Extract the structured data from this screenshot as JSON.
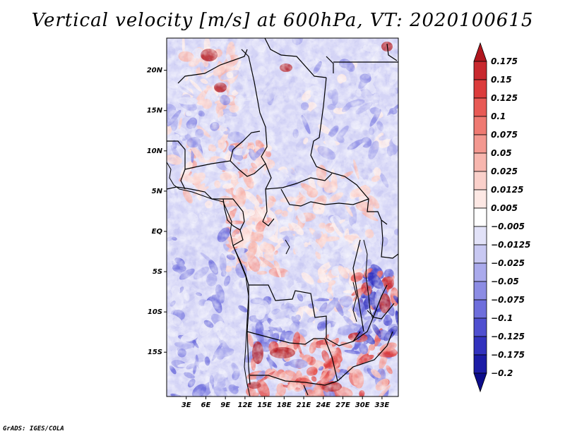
{
  "title": "Vertical velocity [m/s] at 600hPa, VT: 2020100615",
  "credit": "GrADS: IGES/COLA",
  "map": {
    "lon_range": [
      0,
      35.5
    ],
    "lat_range": [
      -20.5,
      24
    ],
    "lon_ticks": [
      "3E",
      "6E",
      "9E",
      "12E",
      "15E",
      "18E",
      "21E",
      "24E",
      "27E",
      "30E",
      "33E"
    ],
    "lat_ticks": [
      "20N",
      "15N",
      "10N",
      "5N",
      "EQ",
      "5S",
      "10S",
      "15S"
    ]
  },
  "colorbar": {
    "labels": [
      "0.175",
      "0.15",
      "0.125",
      "0.1",
      "0.075",
      "0.05",
      "0.025",
      "0.0125",
      "0.005",
      "−0.005",
      "−0.0125",
      "−0.025",
      "−0.05",
      "−0.075",
      "−0.1",
      "−0.125",
      "−0.175",
      "−0.2"
    ],
    "colors": [
      "#b0161e",
      "#c8282e",
      "#dc3c3c",
      "#e85a55",
      "#ef7a72",
      "#f39890",
      "#f7b6ae",
      "#fad0ca",
      "#fde8e4",
      "#ffffff",
      "#e2e2f8",
      "#c8c8f2",
      "#aaaaec",
      "#8c8ce4",
      "#6e6edc",
      "#4f4fd0",
      "#3232be",
      "#1c1ca6",
      "#0c0c8a"
    ]
  }
}
